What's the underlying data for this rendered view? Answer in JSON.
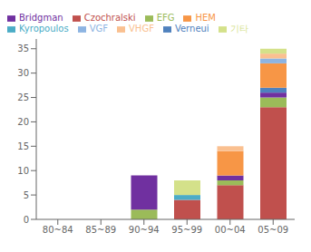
{
  "chart_data": {
    "type": "bar",
    "stacked": true,
    "grid": false,
    "legend": "upper left",
    "categories": [
      "80~84",
      "85~89",
      "90~94",
      "95~99",
      "00~04",
      "05~09"
    ],
    "series": [
      {
        "name": "Czochralski",
        "color": "#C0504D",
        "values": [
          0,
          0,
          0,
          4,
          7,
          23
        ]
      },
      {
        "name": "EFG",
        "color": "#9BBB59",
        "values": [
          0,
          0,
          2,
          0,
          1,
          2
        ]
      },
      {
        "name": "Bridgman",
        "color": "#7030A0",
        "values": [
          0,
          0,
          7,
          0,
          1,
          1
        ]
      },
      {
        "name": "Verneui",
        "color": "#4F81BD",
        "values": [
          0,
          0,
          0,
          0,
          0,
          1
        ]
      },
      {
        "name": "HEM",
        "color": "#F79646",
        "values": [
          0,
          0,
          0,
          0,
          5,
          5
        ]
      },
      {
        "name": "Kyropoulos",
        "color": "#4BACC6",
        "values": [
          0,
          0,
          0,
          1,
          0,
          0
        ]
      },
      {
        "name": "VGF",
        "color": "#8DB4E2",
        "values": [
          0,
          0,
          0,
          0,
          0,
          1
        ]
      },
      {
        "name": "VHGF",
        "color": "#FAC090",
        "values": [
          0,
          0,
          0,
          0,
          1,
          1
        ]
      },
      {
        "name": "기타",
        "color": "#D4E18A",
        "values": [
          0,
          0,
          0,
          3,
          0,
          1
        ]
      }
    ],
    "ylim": [
      0,
      37
    ],
    "yticks": [
      0,
      5,
      10,
      15,
      20,
      25,
      30,
      35
    ]
  }
}
